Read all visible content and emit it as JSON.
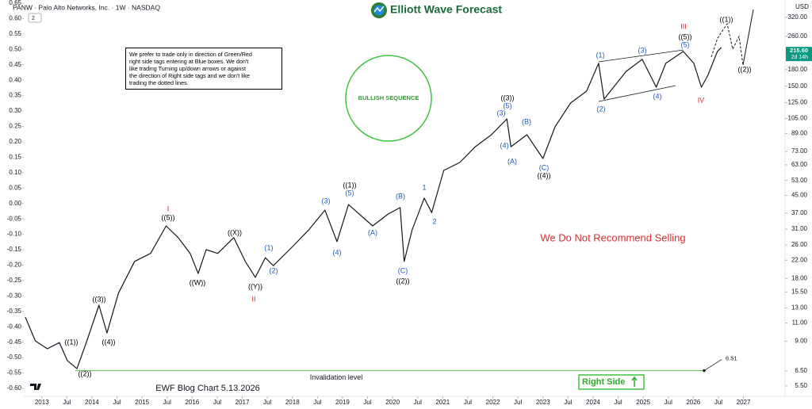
{
  "header": "PANW · Palo Alto Networks, Inc. · 1W · NASDAQ",
  "badge": "2",
  "logo": "Elliott Wave Forecast",
  "note": [
    "We prefer to trade only in direction of Green/Red",
    "right side tags entering at Blue boxes. We don't",
    "like trading Turning up/down arrows or against",
    "the direction of Right side tags and we don't like",
    "trading the dotted lines."
  ],
  "bullish": "BULLISH SEQUENCE",
  "warning": "We Do Not Recommend Selling",
  "footer": "EWF Blog Chart 5.13.2026",
  "right_side": "Right Side",
  "chart_data": {
    "type": "line",
    "currency": "USD",
    "current_price": {
      "value": 215.6,
      "label": "215.60"
    },
    "countdown": "2d 14h",
    "x": [
      2012.67,
      2012.87,
      2013.11,
      2013.35,
      2013.51,
      2013.7,
      2013.9,
      2014.14,
      2014.3,
      2014.53,
      2014.85,
      2015.17,
      2015.48,
      2015.72,
      2015.96,
      2016.12,
      2016.28,
      2016.51,
      2016.83,
      2017.06,
      2017.26,
      2017.46,
      2017.62,
      2018.02,
      2018.33,
      2018.65,
      2018.89,
      2019.12,
      2019.6,
      2019.91,
      2020.15,
      2020.23,
      2020.39,
      2020.63,
      2020.78,
      2021.02,
      2021.34,
      2021.65,
      2021.97,
      2022.28,
      2022.36,
      2022.68,
      2023.0,
      2023.24,
      2023.55,
      2023.87,
      2024.11,
      2024.22,
      2024.66,
      2024.98,
      2025.26,
      2025.45,
      2025.8,
      2026.01,
      2026.16,
      2026.29,
      2026.48,
      2026.56
    ],
    "series": [
      {
        "name": "PANW",
        "color": "#131722",
        "axis": "y2",
        "values": [
          11.75,
          9.04,
          8.28,
          8.87,
          7.26,
          6.65,
          9.04,
          13.4,
          9.86,
          15.3,
          21.7,
          23.7,
          32.1,
          28.2,
          23.7,
          19.0,
          24.7,
          23.7,
          28.2,
          21.7,
          18.2,
          22.6,
          20.7,
          25.8,
          30.8,
          38.2,
          27.0,
          40.6,
          32.1,
          36.6,
          39.3,
          21.7,
          30.8,
          43.6,
          37.2,
          59.2,
          64.6,
          76.9,
          87.7,
          104.4,
          76.9,
          87.7,
          67.5,
          95.7,
          124.5,
          141.9,
          192.8,
          130,
          176.6,
          201.4,
          148.2,
          192.8,
          219.8,
          192.8,
          148.2,
          169,
          219.8,
          229.6
        ]
      }
    ],
    "xlim": [
      2012.64,
      2027.83
    ],
    "xticks": [
      2013,
      {
        "value": 2013.5,
        "label": "Jul"
      },
      2014,
      {
        "value": 2014.5,
        "label": "Jul"
      },
      2015,
      {
        "value": 2015.5,
        "label": "Jul"
      },
      2016,
      {
        "value": 2016.5,
        "label": "Jul"
      },
      2017,
      {
        "value": 2017.5,
        "label": "Jul"
      },
      2018,
      {
        "value": 2018.5,
        "label": "Jul"
      },
      2019,
      {
        "value": 2019.5,
        "label": "Jul"
      },
      2020,
      {
        "value": 2020.5,
        "label": "Jul"
      },
      2021,
      {
        "value": 2021.5,
        "label": "Jul"
      },
      2022,
      {
        "value": 2022.5,
        "label": "Jul"
      },
      2023,
      {
        "value": 2023.5,
        "label": "Jul"
      },
      2024,
      {
        "value": 2024.5,
        "label": "Jul"
      },
      2025,
      {
        "value": 2025.5,
        "label": "Jul"
      },
      2026,
      {
        "value": 2026.5,
        "label": "Jul"
      },
      2027
    ],
    "ylim": [
      -0.6,
      0.65
    ],
    "yticks": [
      0.65,
      {
        "value": 0.6,
        "label": "0.60"
      },
      0.55,
      {
        "value": 0.5,
        "label": "0.50"
      },
      0.45,
      {
        "value": 0.4,
        "label": "0.40"
      },
      0.35,
      {
        "value": 0.3,
        "label": "0.30"
      },
      0.25,
      {
        "value": 0.2,
        "label": "0.20"
      },
      0.15,
      {
        "value": 0.1,
        "label": "0.10"
      },
      0.05,
      {
        "value": 0,
        "label": "0.00"
      },
      -0.05,
      {
        "value": -0.1,
        "label": "-0.10"
      },
      -0.15,
      {
        "value": -0.2,
        "label": "-0.20"
      },
      -0.25,
      {
        "value": -0.3,
        "label": "-0.30"
      },
      -0.35,
      {
        "value": -0.4,
        "label": "-0.40"
      },
      -0.45,
      {
        "value": -0.5,
        "label": "-0.50"
      },
      -0.55,
      {
        "value": -0.6,
        "label": "-0.60"
      }
    ],
    "y2lim": [
      5.35,
      374.4
    ],
    "y2log": true,
    "y2ticks": [
      {
        "value": 320,
        "label": "320.00"
      },
      {
        "value": 260,
        "label": "260.00"
      },
      {
        "value": 180,
        "label": "180.00"
      },
      {
        "value": 150,
        "label": "150.00"
      },
      {
        "value": 125,
        "label": "125.00"
      },
      {
        "value": 105,
        "label": "105.00"
      },
      {
        "value": 89,
        "label": "89.00"
      },
      {
        "value": 73,
        "label": "73.00"
      },
      {
        "value": 63,
        "label": "63.00"
      },
      {
        "value": 53,
        "label": "53.00"
      },
      {
        "value": 45,
        "label": "45.00"
      },
      {
        "value": 37,
        "label": "37.00"
      },
      {
        "value": 31,
        "label": "31.00"
      },
      {
        "value": 26,
        "label": "26.00"
      },
      {
        "value": 22,
        "label": "22.00"
      },
      {
        "value": 18,
        "label": "18.00"
      },
      {
        "value": 15.5,
        "label": "15.50"
      },
      {
        "value": 13,
        "label": "13.00"
      },
      {
        "value": 11,
        "label": "11.00"
      },
      {
        "value": 9,
        "label": "9.00"
      },
      {
        "value": 6.5,
        "label": "6.50"
      },
      {
        "value": 5.5,
        "label": "5.50"
      }
    ],
    "invalidation": {
      "label": "Invalidation level",
      "value": 6.51,
      "color": "#66cc55"
    },
    "label_colors": {
      "black": "#000000",
      "blue": "#1e5bbf",
      "red": "#d32f2f"
    },
    "annotations": [
      {
        "text": "((1))",
        "color": "black"
      },
      {
        "text": "((2))",
        "color": "black"
      },
      {
        "text": "((3))",
        "color": "black"
      },
      {
        "text": "((4))",
        "color": "black"
      },
      {
        "text": "I",
        "color": "red"
      },
      {
        "text": "((5))",
        "color": "black"
      },
      {
        "text": "((W))",
        "color": "black"
      },
      {
        "text": "((X))",
        "color": "black"
      },
      {
        "text": "((Y))",
        "color": "black"
      },
      {
        "text": "II",
        "color": "red"
      },
      {
        "text": "(1)",
        "color": "blue"
      },
      {
        "text": "(2)",
        "color": "blue"
      },
      {
        "text": "(3)",
        "color": "blue"
      },
      {
        "text": "(4)",
        "color": "blue"
      },
      {
        "text": "((1))",
        "color": "black"
      },
      {
        "text": "(5)",
        "color": "blue"
      },
      {
        "text": "(A)",
        "color": "blue"
      },
      {
        "text": "(B)",
        "color": "blue"
      },
      {
        "text": "(C)",
        "color": "blue"
      },
      {
        "text": "((2))",
        "color": "black"
      },
      {
        "text": "1",
        "color": "blue"
      },
      {
        "text": "2",
        "color": "blue"
      },
      {
        "text": "((3))",
        "color": "black"
      },
      {
        "text": "(5)",
        "color": "blue"
      },
      {
        "text": "(3)",
        "color": "blue"
      },
      {
        "text": "(4)",
        "color": "blue"
      },
      {
        "text": "(B)",
        "color": "blue"
      },
      {
        "text": "(A)",
        "color": "blue"
      },
      {
        "text": "(C)",
        "color": "blue"
      },
      {
        "text": "((4))",
        "color": "black"
      },
      {
        "text": "(1)",
        "color": "blue"
      },
      {
        "text": "(2)",
        "color": "blue"
      },
      {
        "text": "(3)",
        "color": "blue"
      },
      {
        "text": "(4)",
        "color": "blue"
      },
      {
        "text": "III",
        "color": "red"
      },
      {
        "text": "((5))",
        "color": "black"
      },
      {
        "text": "(5)",
        "color": "blue"
      },
      {
        "text": "IV",
        "color": "red"
      },
      {
        "text": "((1))",
        "color": "black"
      },
      {
        "text": "((2))",
        "color": "black"
      }
    ]
  }
}
